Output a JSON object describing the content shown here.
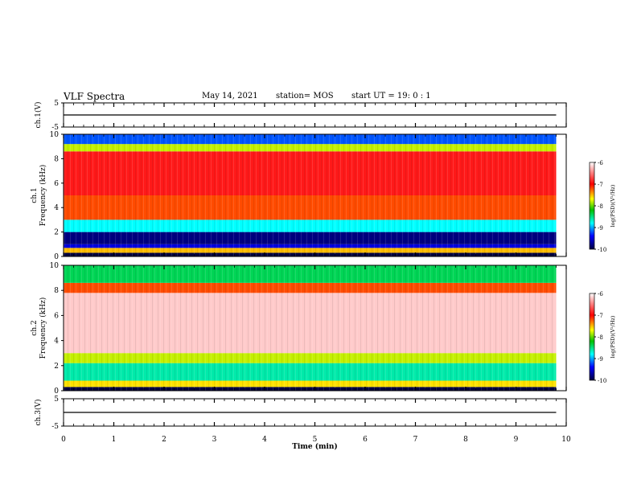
{
  "header": {
    "title": "VLF Spectra",
    "date": "May 14, 2021",
    "station": "station= MOS",
    "start": "start  UT =   19: 0  : 1"
  },
  "chart_data": [
    {
      "type": "line",
      "panel": "ch1-waveform",
      "ylabel": "ch.1(V)",
      "ylim": [
        -5,
        5
      ],
      "yticks": [
        5,
        -5
      ],
      "xlim": [
        0,
        10
      ],
      "series": [
        {
          "x": [
            0,
            9.8
          ],
          "values": [
            0,
            0
          ]
        }
      ]
    },
    {
      "type": "heatmap",
      "panel": "ch1-spectrogram",
      "ylabel_line1": "ch.1",
      "ylabel_line2": "Frequency (kHz)",
      "ylim": [
        0,
        10
      ],
      "yticks": [
        0,
        2,
        4,
        6,
        8,
        10
      ],
      "xlim": [
        0,
        9.8
      ],
      "colorbar": {
        "label": "log(PSD)(V²/Hz)",
        "range": [
          -10,
          -6
        ],
        "ticks": [
          -6,
          -7,
          -8,
          -9,
          -10
        ]
      },
      "bands_khz": [
        {
          "from": 0,
          "to": 0.3,
          "level": -10
        },
        {
          "from": 0.3,
          "to": 0.7,
          "level": -7.5
        },
        {
          "from": 0.7,
          "to": 1.0,
          "level": -9.5
        },
        {
          "from": 1.0,
          "to": 2.0,
          "level": -9.8
        },
        {
          "from": 2.0,
          "to": 3.0,
          "level": -8.8
        },
        {
          "from": 3.0,
          "to": 5.0,
          "level": -7.2
        },
        {
          "from": 5.0,
          "to": 8.6,
          "level": -6.9
        },
        {
          "from": 8.6,
          "to": 9.2,
          "level": -7.8
        },
        {
          "from": 9.2,
          "to": 10,
          "level": -9.2
        }
      ]
    },
    {
      "type": "heatmap",
      "panel": "ch2-spectrogram",
      "ylabel_line1": "ch.2",
      "ylabel_line2": "Frequency (kHz)",
      "ylim": [
        0,
        10
      ],
      "yticks": [
        0,
        2,
        4,
        6,
        8,
        10
      ],
      "xlim": [
        0,
        9.8
      ],
      "colorbar": {
        "label": "log(PSD)(V²/Hz)",
        "range": [
          -10,
          -6
        ],
        "ticks": [
          -6,
          -7,
          -8,
          -9,
          -10
        ]
      },
      "bands_khz": [
        {
          "from": 0,
          "to": 0.3,
          "level": -10
        },
        {
          "from": 0.3,
          "to": 0.8,
          "level": -7.6
        },
        {
          "from": 0.8,
          "to": 2.2,
          "level": -8.6
        },
        {
          "from": 2.2,
          "to": 3.0,
          "level": -7.8
        },
        {
          "from": 3.0,
          "to": 7.8,
          "level": -6.2
        },
        {
          "from": 7.8,
          "to": 8.6,
          "level": -7.2
        },
        {
          "from": 8.6,
          "to": 10,
          "level": -8.4
        }
      ]
    },
    {
      "type": "line",
      "panel": "ch3-waveform",
      "ylabel": "ch.3(V)",
      "ylim": [
        -5,
        5
      ],
      "yticks": [
        5,
        -5
      ],
      "xlabel": "Time  (min)",
      "xlim": [
        0,
        10
      ],
      "xticks": [
        0,
        1,
        2,
        3,
        4,
        5,
        6,
        7,
        8,
        9,
        10
      ],
      "series": [
        {
          "x": [
            0,
            9.8
          ],
          "values": [
            0,
            0
          ]
        }
      ]
    }
  ],
  "colors": {
    "axis": "#000000",
    "background": "#ffffff"
  }
}
